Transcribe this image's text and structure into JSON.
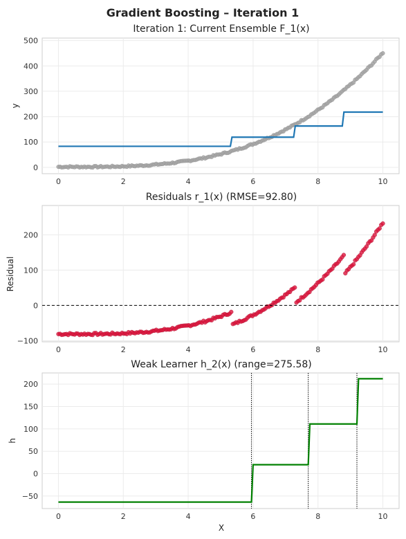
{
  "figure_title": "Gradient Boosting – Iteration 1",
  "colors": {
    "points_gray": "#a6a6a6",
    "ensemble_blue": "#1f77b4",
    "residual_red": "#dc143c",
    "learner_green": "#008000",
    "zero_line": "#000000",
    "split_lines": "#000000"
  },
  "chart_data": [
    {
      "type": "line",
      "title": "Iteration 1: Current Ensemble F_1(x)",
      "xlabel": "",
      "ylabel": "y",
      "xlim": [
        -0.5,
        10.5
      ],
      "ylim": [
        -25,
        510
      ],
      "xticks": [
        0,
        2,
        4,
        6,
        8,
        10
      ],
      "yticks": [
        0,
        100,
        200,
        300,
        400,
        500
      ],
      "grid": true,
      "scatter_function": "0.5*x^3 - 0.5*x^2 + 2 at 200 evenly spaced points on [0, 10] with small noise",
      "series": [
        {
          "kind": "step",
          "x": [
            0,
            5.3,
            5.35,
            7.25,
            7.3,
            8.75,
            8.8,
            10
          ],
          "y": [
            83,
            83,
            119,
            119,
            163,
            163,
            218,
            218
          ]
        }
      ]
    },
    {
      "type": "scatter",
      "title": "Residuals r_1(x)  (RMSE=92.80)",
      "xlabel": "",
      "ylabel": "Residual",
      "xlim": [
        -0.5,
        10.5
      ],
      "ylim": [
        -103,
        283
      ],
      "xticks": [
        0,
        2,
        4,
        6,
        8,
        10
      ],
      "yticks": [
        -100,
        0,
        100,
        200
      ],
      "grid": true,
      "reference_line_y": 0,
      "residual_function": "y minus ensemble step value"
    },
    {
      "type": "line",
      "title": "Weak Learner h_2(x)  (range=275.58)",
      "xlabel": "X",
      "ylabel": "h",
      "xlim": [
        -0.5,
        10.5
      ],
      "ylim": [
        -78,
        225
      ],
      "xticks": [
        0,
        2,
        4,
        6,
        8,
        10
      ],
      "yticks": [
        -50,
        0,
        50,
        100,
        150,
        200
      ],
      "grid": true,
      "split_points": [
        5.95,
        7.7,
        9.2
      ],
      "series": [
        {
          "kind": "step",
          "x": [
            0,
            5.95,
            6.0,
            7.7,
            7.75,
            9.2,
            9.25,
            10
          ],
          "y": [
            -63.5,
            -63.5,
            20,
            20,
            111,
            111,
            212,
            212
          ]
        }
      ]
    }
  ]
}
